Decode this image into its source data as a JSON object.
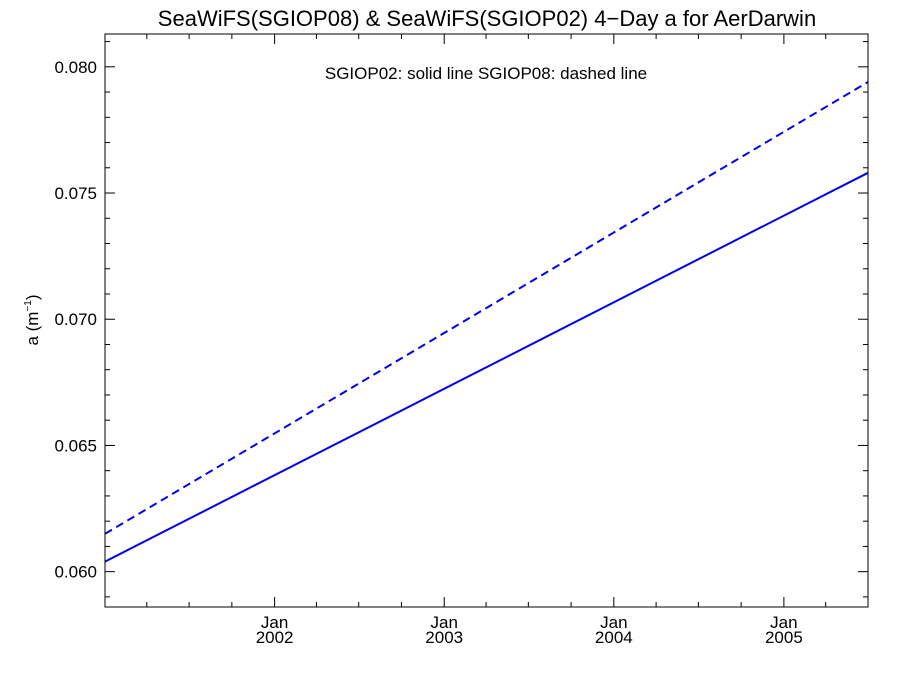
{
  "chart_data": {
    "type": "line",
    "title": "SeaWiFS(SGIOP08) & SeaWiFS(SGIOP02) 4−Day a for AerDarwin",
    "ylabel": "a (m",
    "ylabel_exponent": "−1",
    "ylabel_close": ")",
    "annotation": "SGIOP02: solid line   SGIOP08: dashed line",
    "x_scale": "date",
    "xlim": [
      "2001-01-01",
      "2005-07-01"
    ],
    "ylim": [
      0.0586,
      0.0813
    ],
    "x_ticks": [
      {
        "value": "2002-01-01",
        "month": "Jan",
        "year": "2002"
      },
      {
        "value": "2003-01-01",
        "month": "Jan",
        "year": "2003"
      },
      {
        "value": "2004-01-01",
        "month": "Jan",
        "year": "2004"
      },
      {
        "value": "2005-01-01",
        "month": "Jan",
        "year": "2005"
      }
    ],
    "y_ticks": [
      "0.060",
      "0.065",
      "0.070",
      "0.075",
      "0.080"
    ],
    "grid": false,
    "series": [
      {
        "name": "SGIOP02",
        "style": "solid",
        "color": "#0000ee",
        "x": [
          "2001-01-01",
          "2005-07-01"
        ],
        "y": [
          0.0604,
          0.0758
        ]
      },
      {
        "name": "SGIOP08",
        "style": "dashed",
        "color": "#0000ee",
        "x": [
          "2001-01-01",
          "2005-07-01"
        ],
        "y": [
          0.0615,
          0.0794
        ]
      }
    ]
  }
}
